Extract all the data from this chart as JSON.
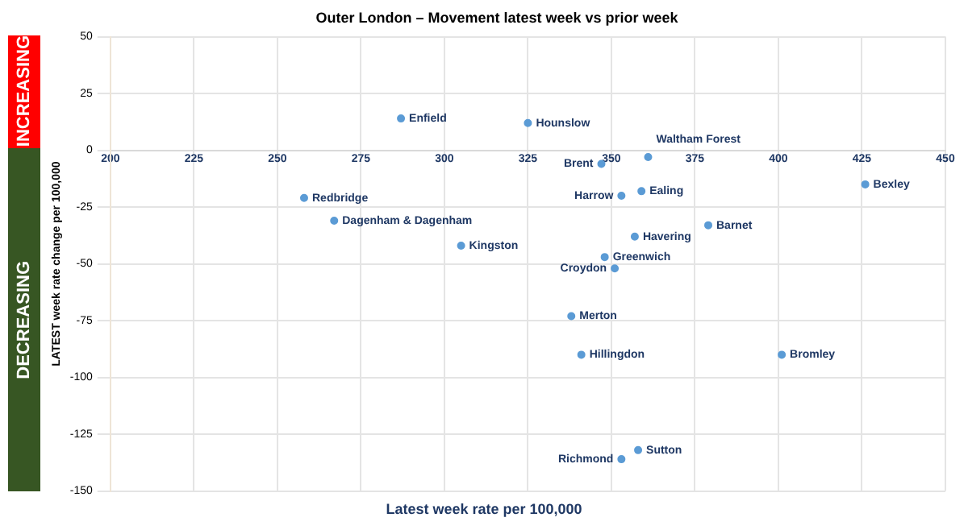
{
  "chart_data": {
    "type": "scatter",
    "title": "Outer London – Movement latest week vs prior week",
    "xlabel": "Latest week rate per 100,000",
    "ylabel": "LATEST week rate change per 100,000",
    "xlim": [
      200,
      450
    ],
    "xticks": [
      200,
      225,
      250,
      275,
      300,
      325,
      350,
      375,
      400,
      425,
      450
    ],
    "ylim": [
      -150,
      50
    ],
    "yticks": [
      -150,
      -125,
      -100,
      -75,
      -50,
      -25,
      0,
      25,
      50
    ],
    "grid": true,
    "marker": "circle",
    "annotations": [
      "INCREASING",
      "DECREASING"
    ],
    "series": [
      {
        "name": "Enfield",
        "color": "#5b9bd5",
        "x": [
          287
        ],
        "values": [
          14
        ]
      },
      {
        "name": "Hounslow",
        "color": "#5b9bd5",
        "x": [
          325
        ],
        "values": [
          12
        ]
      },
      {
        "name": "Brent",
        "color": "#5b9bd5",
        "x": [
          347
        ],
        "values": [
          -6
        ]
      },
      {
        "name": "Waltham Forest",
        "color": "#5b9bd5",
        "x": [
          361
        ],
        "values": [
          -3
        ]
      },
      {
        "name": "Ealing",
        "color": "#5b9bd5",
        "x": [
          359
        ],
        "values": [
          -18
        ]
      },
      {
        "name": "Harrow",
        "color": "#5b9bd5",
        "x": [
          353
        ],
        "values": [
          -20
        ]
      },
      {
        "name": "Bexley",
        "color": "#5b9bd5",
        "x": [
          426
        ],
        "values": [
          -15
        ]
      },
      {
        "name": "Redbridge",
        "color": "#5b9bd5",
        "x": [
          258
        ],
        "values": [
          -21
        ]
      },
      {
        "name": "Dagenham & Dagenham",
        "color": "#5b9bd5",
        "x": [
          267
        ],
        "values": [
          -31
        ]
      },
      {
        "name": "Kingston",
        "color": "#5b9bd5",
        "x": [
          305
        ],
        "values": [
          -42
        ]
      },
      {
        "name": "Barnet",
        "color": "#5b9bd5",
        "x": [
          379
        ],
        "values": [
          -33
        ]
      },
      {
        "name": "Havering",
        "color": "#5b9bd5",
        "x": [
          357
        ],
        "values": [
          -38
        ]
      },
      {
        "name": "Greenwich",
        "color": "#5b9bd5",
        "x": [
          348
        ],
        "values": [
          -47
        ]
      },
      {
        "name": "Croydon",
        "color": "#5b9bd5",
        "x": [
          351
        ],
        "values": [
          -52
        ]
      },
      {
        "name": "Merton",
        "color": "#5b9bd5",
        "x": [
          338
        ],
        "values": [
          -73
        ]
      },
      {
        "name": "Hillingdon",
        "color": "#5b9bd5",
        "x": [
          341
        ],
        "values": [
          -90
        ]
      },
      {
        "name": "Bromley",
        "color": "#5b9bd5",
        "x": [
          401
        ],
        "values": [
          -90
        ]
      },
      {
        "name": "Sutton",
        "color": "#5b9bd5",
        "x": [
          358
        ],
        "values": [
          -132
        ]
      },
      {
        "name": "Richmond",
        "color": "#5b9bd5",
        "x": [
          353
        ],
        "values": [
          -136
        ]
      }
    ]
  }
}
